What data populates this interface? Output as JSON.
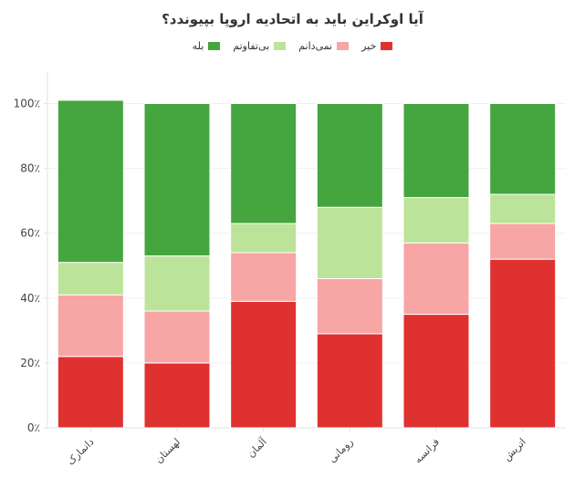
{
  "chart_data": {
    "type": "bar",
    "stacked": true,
    "title": "آیا اوکراین باید به اتحادیه اروپا بپیوندد؟",
    "categories": [
      "دانمارک",
      "لهستان",
      "آلمان",
      "رومانی",
      "فرانسه",
      "اتریش"
    ],
    "series": [
      {
        "name": "خیر",
        "color": "#e03131",
        "values": [
          22,
          20,
          39,
          29,
          35,
          52
        ]
      },
      {
        "name": "نمی‌دانم",
        "color": "#f8a5a5",
        "values": [
          19,
          16,
          15,
          17,
          22,
          11
        ]
      },
      {
        "name": "بی‌تفاوتم",
        "color": "#bce39a",
        "values": [
          10,
          17,
          9,
          22,
          14,
          9
        ]
      },
      {
        "name": "بله",
        "color": "#45a63f",
        "values": [
          50,
          47,
          37,
          32,
          29,
          28
        ]
      }
    ],
    "yticks": [
      "0٪",
      "20٪",
      "40٪",
      "60٪",
      "80٪",
      "100٪"
    ],
    "ylim": [
      0,
      100
    ],
    "grid": true,
    "legend": "top-center"
  }
}
